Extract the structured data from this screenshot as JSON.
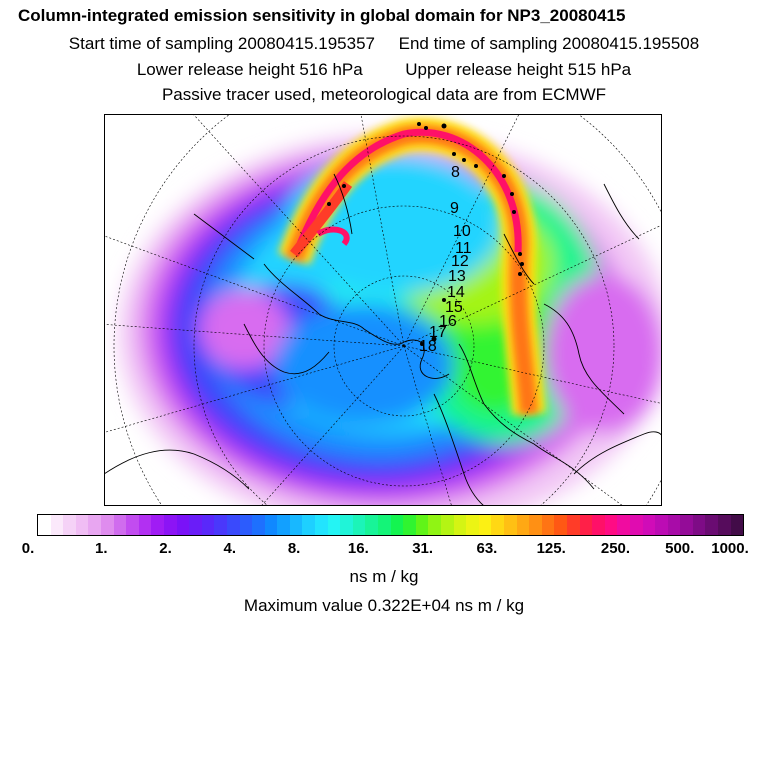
{
  "header": {
    "title": "Column-integrated emission sensitivity in global domain for NP3_20080415",
    "start_label": "Start time of sampling 20080415.195357",
    "end_label": "End time of sampling 20080415.195508",
    "lower_label": "Lower release height  516 hPa",
    "upper_label": "Upper release height  515 hPa",
    "info": "Passive tracer used, meteorological data are from ECMWF"
  },
  "map": {
    "trajectory_labels": [
      "8",
      "9",
      "10",
      "11",
      "12",
      "13",
      "14",
      "15",
      "16",
      "17",
      "18"
    ]
  },
  "colorbar": {
    "tick_labels": [
      "0.",
      "1.",
      "2.",
      "4.",
      "8.",
      "16.",
      "31.",
      "63.",
      "125.",
      "250.",
      "500.",
      "1000."
    ],
    "colors": [
      "#ffffff",
      "#fbe9fb",
      "#f5d2f7",
      "#f0bdf4",
      "#e8a6f1",
      "#df8cee",
      "#d06cee",
      "#c24cf0",
      "#b230f2",
      "#a01cf4",
      "#8c14f5",
      "#7a12f7",
      "#6a1df8",
      "#5a28fa",
      "#4a38fb",
      "#3a4afc",
      "#2c5cfd",
      "#1e70fe",
      "#1088ff",
      "#12a0ff",
      "#18b8ff",
      "#1ed0ff",
      "#22e4fe",
      "#24f4f4",
      "#20f4d8",
      "#1cf4b8",
      "#18f498",
      "#14f478",
      "#14f450",
      "#30f430",
      "#60f418",
      "#90f414",
      "#b4f414",
      "#d4f414",
      "#ecf414",
      "#fcf014",
      "#ffd814",
      "#ffc014",
      "#ffa814",
      "#ff9014",
      "#ff7414",
      "#ff5814",
      "#ff3c28",
      "#ff2048",
      "#ff1068",
      "#ff0c84",
      "#f00ca0",
      "#e00cb0",
      "#d00cb8",
      "#bc0cb4",
      "#a80ca8",
      "#940c98",
      "#7e0c86",
      "#6a0c72",
      "#560c5c",
      "#420c48"
    ],
    "unit": "ns m / kg",
    "max_value_text": "Maximum value  0.322E+04 ns m / kg"
  }
}
